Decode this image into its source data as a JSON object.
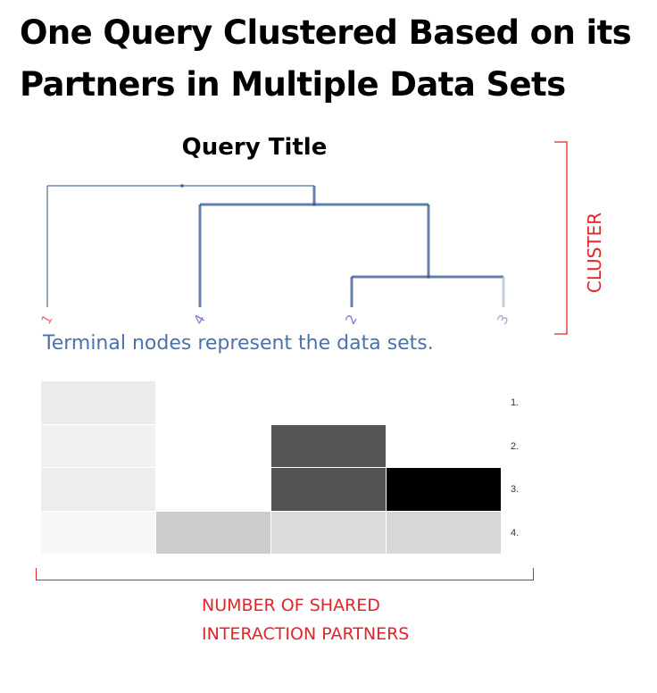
{
  "title": {
    "line1": "One Query Clustered Based on its",
    "line2": "Partners in Multiple Data Sets"
  },
  "query_title": "Query Title",
  "dendrogram": {
    "leaves": [
      {
        "label": "1",
        "color": "#e8707a"
      },
      {
        "label": "4",
        "color": "#7a73d6"
      },
      {
        "label": "2",
        "color": "#7a73d6"
      },
      {
        "label": "3",
        "color": "#a9a2e0"
      }
    ],
    "line_color": "#3d5f96"
  },
  "cluster_label": "CLUSTER",
  "terminal_caption": "Terminal nodes represent the data sets.",
  "heatmap": {
    "row_labels": [
      "1.",
      "2.",
      "3.",
      "4."
    ],
    "rows": [
      [
        "#ebebeb",
        "#ffffff",
        "#ffffff",
        "#ffffff"
      ],
      [
        "#f1f1f1",
        "#ffffff",
        "#555555",
        "#ffffff"
      ],
      [
        "#ededed",
        "#ffffff",
        "#525252",
        "#000000"
      ],
      [
        "#f7f7f7",
        "#cccccc",
        "#dcdcdc",
        "#d7d7d7"
      ]
    ]
  },
  "axis_label": {
    "line1": "NUMBER OF SHARED",
    "line2": "INTERACTION PARTNERS"
  },
  "colors": {
    "annotation_red": "#e0262b",
    "caption_blue": "#4b72aa"
  }
}
